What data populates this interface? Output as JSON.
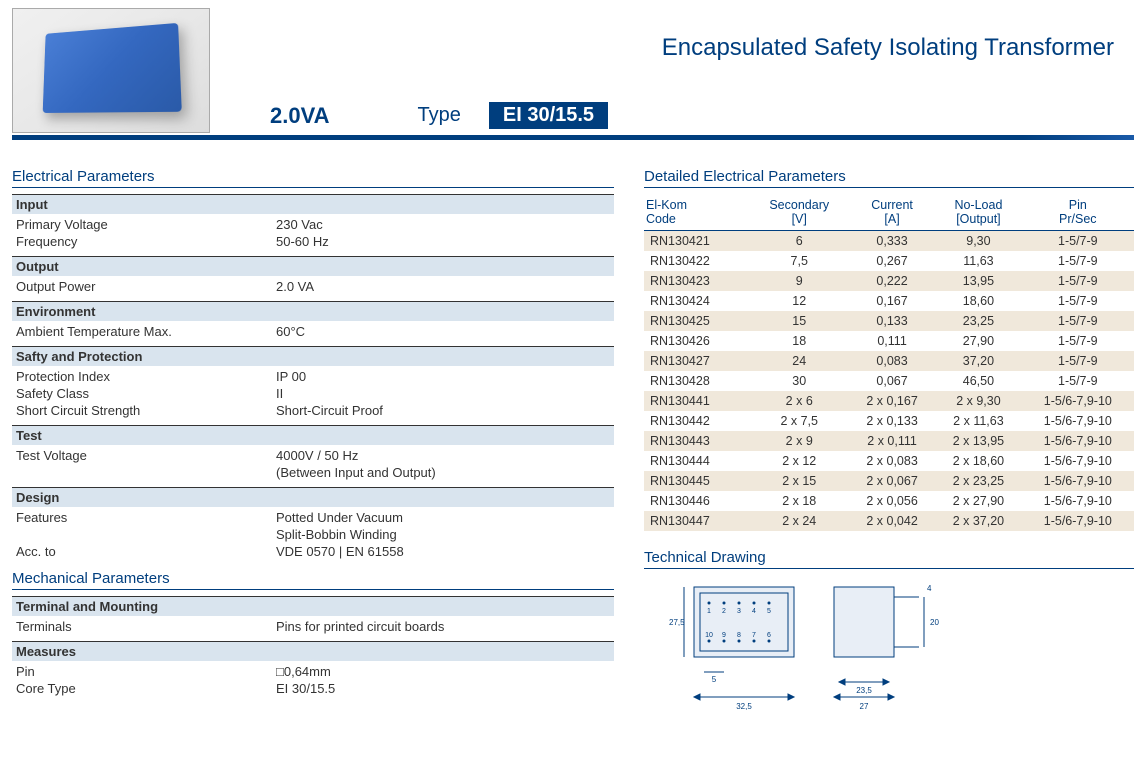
{
  "header": {
    "main_title": "Encapsulated Safety Isolating Transformer",
    "va": "2.0VA",
    "type_label": "Type",
    "type_value": "EI 30/15.5"
  },
  "left_sections": [
    {
      "title": "Electrical Parameters",
      "groups": [
        {
          "subhead": "Input",
          "rows": [
            {
              "label": "Primary Voltage",
              "value": "230 Vac"
            },
            {
              "label": "Frequency",
              "value": "50-60 Hz"
            }
          ]
        },
        {
          "subhead": "Output",
          "rows": [
            {
              "label": "Output Power",
              "value": "2.0 VA"
            }
          ]
        },
        {
          "subhead": "Environment",
          "rows": [
            {
              "label": "Ambient Temperature Max.",
              "value": "60°C"
            }
          ]
        },
        {
          "subhead": "Safty and Protection",
          "rows": [
            {
              "label": "Protection Index",
              "value": "IP 00"
            },
            {
              "label": "Safety Class",
              "value": "II"
            },
            {
              "label": "Short Circuit Strength",
              "value": "Short-Circuit Proof"
            }
          ]
        },
        {
          "subhead": "Test",
          "rows": [
            {
              "label": "Test Voltage",
              "value": "4000V / 50 Hz"
            },
            {
              "label": "",
              "value": "(Between Input and Output)"
            }
          ]
        },
        {
          "subhead": "Design",
          "rows": [
            {
              "label": "Features",
              "value": "Potted Under Vacuum"
            },
            {
              "label": "",
              "value": "Split-Bobbin Winding"
            },
            {
              "label": "Acc. to",
              "value": "VDE 0570 | EN 61558"
            }
          ]
        }
      ]
    },
    {
      "title": "Mechanical Parameters",
      "groups": [
        {
          "subhead": "Terminal and Mounting",
          "rows": [
            {
              "label": "Terminals",
              "value": "Pins for printed circuit boards"
            }
          ]
        },
        {
          "subhead": "Measures",
          "rows": [
            {
              "label": "Pin",
              "value": "□0,64mm"
            },
            {
              "label": "Core Type",
              "value": "EI 30/15.5"
            }
          ]
        }
      ]
    }
  ],
  "detail": {
    "title": "Detailed Electrical Parameters",
    "columns": [
      "El-Kom Code",
      "Secondary [V]",
      "Current [A]",
      "No-Load [Output]",
      "Pin Pr/Sec"
    ],
    "rows": [
      [
        "RN130421",
        "6",
        "0,333",
        "9,30",
        "1-5/7-9"
      ],
      [
        "RN130422",
        "7,5",
        "0,267",
        "11,63",
        "1-5/7-9"
      ],
      [
        "RN130423",
        "9",
        "0,222",
        "13,95",
        "1-5/7-9"
      ],
      [
        "RN130424",
        "12",
        "0,167",
        "18,60",
        "1-5/7-9"
      ],
      [
        "RN130425",
        "15",
        "0,133",
        "23,25",
        "1-5/7-9"
      ],
      [
        "RN130426",
        "18",
        "0,111",
        "27,90",
        "1-5/7-9"
      ],
      [
        "RN130427",
        "24",
        "0,083",
        "37,20",
        "1-5/7-9"
      ],
      [
        "RN130428",
        "30",
        "0,067",
        "46,50",
        "1-5/7-9"
      ],
      [
        "RN130441",
        "2 x 6",
        "2 x 0,167",
        "2 x 9,30",
        "1-5/6-7,9-10"
      ],
      [
        "RN130442",
        "2 x 7,5",
        "2 x 0,133",
        "2 x 11,63",
        "1-5/6-7,9-10"
      ],
      [
        "RN130443",
        "2 x 9",
        "2 x 0,111",
        "2 x 13,95",
        "1-5/6-7,9-10"
      ],
      [
        "RN130444",
        "2 x 12",
        "2 x 0,083",
        "2 x 18,60",
        "1-5/6-7,9-10"
      ],
      [
        "RN130445",
        "2 x 15",
        "2 x 0,067",
        "2 x 23,25",
        "1-5/6-7,9-10"
      ],
      [
        "RN130446",
        "2 x 18",
        "2 x 0,056",
        "2 x 27,90",
        "1-5/6-7,9-10"
      ],
      [
        "RN130447",
        "2 x 24",
        "2 x 0,042",
        "2 x 37,20",
        "1-5/6-7,9-10"
      ]
    ]
  },
  "tech_title": "Technical Drawing",
  "colors": {
    "brand": "#003e7e",
    "band_bg": "#d9e4ee",
    "row_odd": "#f0e8db"
  }
}
